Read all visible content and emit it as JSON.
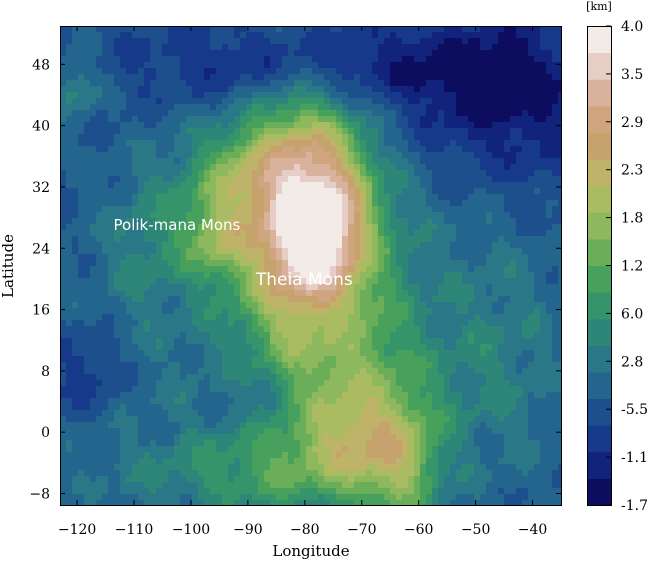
{
  "chart_data": {
    "type": "heatmap",
    "subtype": "filled-contour topographic map",
    "xlabel": "Longitude",
    "ylabel": "Latitude",
    "xlim": [
      -123,
      -35
    ],
    "ylim": [
      -9.5,
      53
    ],
    "x_ticks": [
      -120,
      -110,
      -100,
      -90,
      -80,
      -70,
      -60,
      -50,
      -40
    ],
    "x_tick_labels": [
      "−120",
      "−110",
      "−100",
      "−90",
      "−80",
      "−70",
      "−60",
      "−50",
      "−40"
    ],
    "y_ticks": [
      48,
      40,
      32,
      24,
      16,
      8,
      0,
      -8
    ],
    "y_tick_labels": [
      "48",
      "40",
      "32",
      "24",
      "16",
      "8",
      "0",
      "−8"
    ],
    "colorbar": {
      "unit_label": "[km]",
      "tick_labels": [
        "4.0",
        "3.5",
        "2.9",
        "2.3",
        "1.8",
        "1.2",
        "6.0",
        "2.8",
        "-5.5",
        "-1.1",
        "-1.7"
      ],
      "levels": [
        {
          "value": -1.7,
          "color": "#0d0d60"
        },
        {
          "value": -1.35,
          "color": "#12237e"
        },
        {
          "value": -1.0,
          "color": "#16398a"
        },
        {
          "value": -0.6,
          "color": "#1c4f8c"
        },
        {
          "value": -0.2,
          "color": "#23658c"
        },
        {
          "value": 0.2,
          "color": "#2a7787"
        },
        {
          "value": 0.5,
          "color": "#2e8679"
        },
        {
          "value": 0.8,
          "color": "#35946a"
        },
        {
          "value": 1.1,
          "color": "#47a05c"
        },
        {
          "value": 1.4,
          "color": "#6aae59"
        },
        {
          "value": 1.7,
          "color": "#8db85e"
        },
        {
          "value": 2.0,
          "color": "#aabb62"
        },
        {
          "value": 2.3,
          "color": "#bfb36a"
        },
        {
          "value": 2.6,
          "color": "#c6a26d"
        },
        {
          "value": 2.9,
          "color": "#cfa580"
        },
        {
          "value": 3.2,
          "color": "#d8b29c"
        },
        {
          "value": 3.5,
          "color": "#e6cdc5"
        },
        {
          "value": 3.8,
          "color": "#f3ebe7"
        }
      ]
    },
    "features": [
      {
        "lon": -80,
        "lat": 30,
        "sx": 7.5,
        "sy": 10,
        "h": 3.0
      },
      {
        "lon": -79,
        "lat": 25,
        "sx": 3.5,
        "sy": 3.5,
        "h": 1.0
      },
      {
        "lon": -80,
        "lat": 20,
        "sx": 10,
        "sy": 14,
        "h": 1.1
      },
      {
        "lon": -74,
        "lat": 27,
        "sx": 4,
        "sy": 5,
        "h": 0.6
      },
      {
        "lon": -96,
        "lat": 25,
        "sx": 3.5,
        "sy": 3.5,
        "h": 1.0
      },
      {
        "lon": -99,
        "lat": 30,
        "sx": 10,
        "sy": 7,
        "h": 0.7
      },
      {
        "lon": -93,
        "lat": 34,
        "sx": 5,
        "sy": 4,
        "h": 0.7
      },
      {
        "lon": -108,
        "lat": 23,
        "sx": 6,
        "sy": 6,
        "h": 0.5
      },
      {
        "lon": -120,
        "lat": 45,
        "sx": 3,
        "sy": 3,
        "h": 0.9
      },
      {
        "lon": -68,
        "lat": 5,
        "sx": 10,
        "sy": 9,
        "h": 0.9
      },
      {
        "lon": -63,
        "lat": -4,
        "sx": 5,
        "sy": 6,
        "h": 1.6
      },
      {
        "lon": -72,
        "lat": -2,
        "sx": 5,
        "sy": 5,
        "h": 1.0
      },
      {
        "lon": -85,
        "lat": -3,
        "sx": 9,
        "sy": 5,
        "h": 0.9
      },
      {
        "lon": -100,
        "lat": -6,
        "sx": 15,
        "sy": 4,
        "h": 0.6
      },
      {
        "lon": -108,
        "lat": 8,
        "sx": 12,
        "sy": 9,
        "h": 0.4
      },
      {
        "lon": -45,
        "lat": 10,
        "sx": 8,
        "sy": 12,
        "h": 0.7
      },
      {
        "lon": -58,
        "lat": 30,
        "sx": 10,
        "sy": 8,
        "h": 0.2
      },
      {
        "lon": -80,
        "lat": 48,
        "sx": 20,
        "sy": 4,
        "h": -1.1
      },
      {
        "lon": -45,
        "lat": 44,
        "sx": 14,
        "sy": 8,
        "h": -1.3
      },
      {
        "lon": -118,
        "lat": 8,
        "sx": 5,
        "sy": 4,
        "h": -0.8
      },
      {
        "lon": -88,
        "lat": 3,
        "sx": 6,
        "sy": 4,
        "h": -0.6
      },
      {
        "lon": -75,
        "lat": 14,
        "sx": 3,
        "sy": 2,
        "h": -0.4
      }
    ],
    "annotations": [
      {
        "text": "Polik-mana Mons",
        "lon": -113.6,
        "lat": 26.4,
        "font_size": 15
      },
      {
        "text": "Theia Mons",
        "lon": -88.6,
        "lat": 19.2,
        "font_size": 17
      }
    ]
  }
}
